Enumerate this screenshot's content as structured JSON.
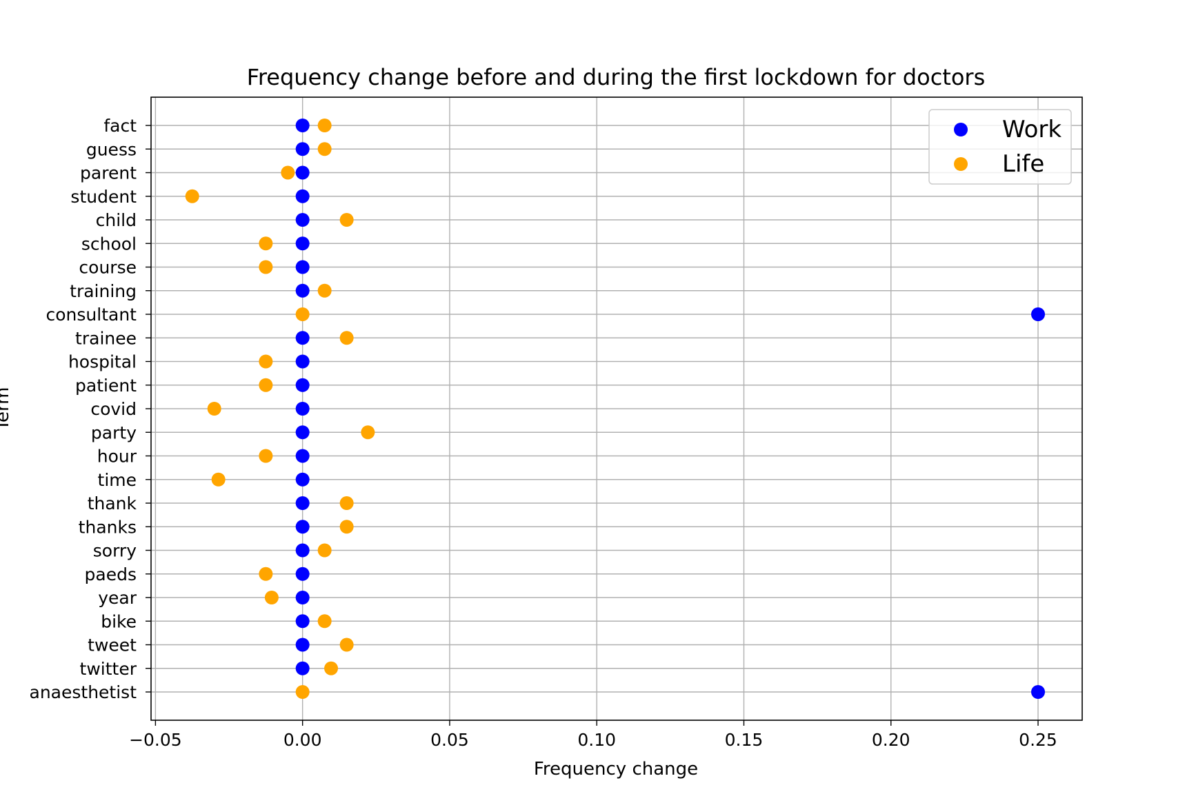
{
  "chart_data": {
    "type": "scatter",
    "title": "Frequency change before and during the first lockdown for doctors",
    "xlabel": "Frequency change",
    "ylabel": "Term",
    "xlim": [
      -0.0515,
      0.265
    ],
    "xticks": [
      -0.05,
      0.0,
      0.05,
      0.1,
      0.15,
      0.2,
      0.25
    ],
    "xtick_labels": [
      "−0.05",
      "0.00",
      "0.05",
      "0.10",
      "0.15",
      "0.20",
      "0.25"
    ],
    "grid": true,
    "legend_position": "top-right",
    "categories": [
      "fact",
      "guess",
      "parent",
      "student",
      "child",
      "school",
      "course",
      "training",
      "consultant",
      "trainee",
      "hospital",
      "patient",
      "covid",
      "party",
      "hour",
      "time",
      "thank",
      "thanks",
      "sorry",
      "paeds",
      "year",
      "bike",
      "tweet",
      "twitter",
      "anaesthetist"
    ],
    "series": [
      {
        "name": "Work",
        "color": "#0000ff",
        "values": [
          0,
          0,
          0,
          0,
          0,
          0,
          0,
          0,
          0.25,
          0,
          0,
          0,
          0,
          0,
          0,
          0,
          0,
          0,
          0,
          0,
          0,
          0,
          0,
          0,
          0.25
        ]
      },
      {
        "name": "Life",
        "color": "#ffa500",
        "values": [
          0.0075,
          0.0075,
          -0.005,
          -0.0375,
          0.015,
          -0.0125,
          -0.0125,
          0.0075,
          0,
          0.015,
          -0.0125,
          -0.0125,
          -0.03,
          0.0222,
          -0.0125,
          -0.0286,
          0.015,
          0.015,
          0.0075,
          -0.0125,
          -0.0105,
          0.0075,
          0.015,
          0.0097,
          0
        ]
      }
    ]
  }
}
